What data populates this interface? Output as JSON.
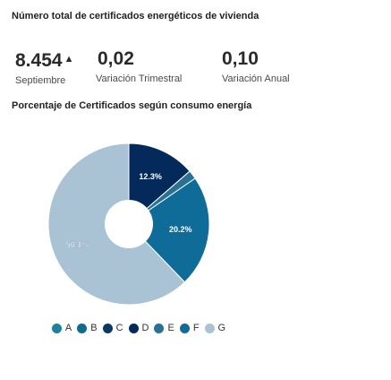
{
  "header": {
    "title": "Número total de certificados energéticos de vivienda"
  },
  "kpis": [
    {
      "value": "8.454",
      "label": "Septiembre",
      "trend_icon": "▲"
    },
    {
      "value": "0,02",
      "label": "Variación Trimestral"
    },
    {
      "value": "0,10",
      "label": "Variación Anual"
    }
  ],
  "chart_title": "Porcentaje de Certificados según consumo energía",
  "chart_data": {
    "type": "pie",
    "title": "Porcentaje de Certificados según consumo energía",
    "categories": [
      "A",
      "B",
      "C",
      "D",
      "E",
      "F",
      "G"
    ],
    "values": [
      0,
      0,
      0,
      12.3,
      1.6,
      20.2,
      56.1
    ],
    "data_labels": [
      "",
      "",
      "",
      "12.3%",
      "",
      "20.2%",
      "56.1%"
    ],
    "colors": [
      "#1e7f9e",
      "#0f6c8c",
      "#0a3a64",
      "#032a5a",
      "#2a6f94",
      "#0f6c98",
      "#a9c3d4"
    ],
    "donut": true,
    "legend_position": "bottom"
  }
}
